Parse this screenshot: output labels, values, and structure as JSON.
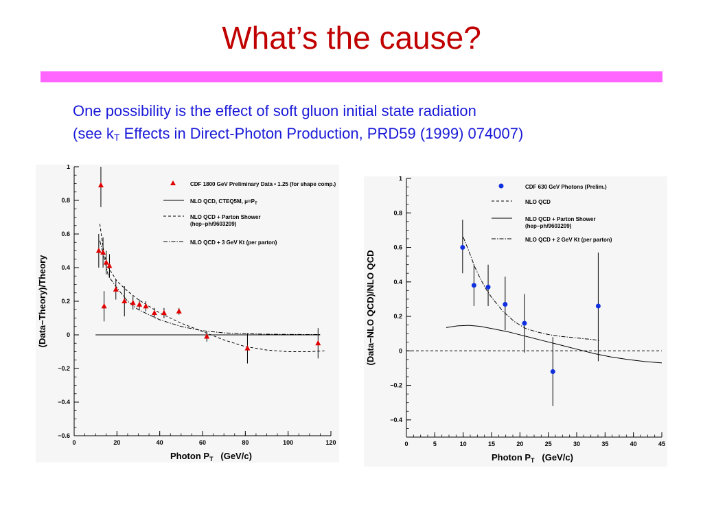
{
  "slide": {
    "title": "What’s the cause?",
    "subtitle_line1": "One possibility is the effect of soft gluon initial state radiation",
    "subtitle_line2_pre": "(see k",
    "subtitle_line2_sub": "T",
    "subtitle_line2_post": " Effects in Direct-Photon Production, PRD59 (1999) 074007)",
    "title_color": "#c00000",
    "rule_color": "#ff66ff",
    "subtitle_color": "#1a1ad8"
  },
  "chart_data": [
    {
      "type": "scatter",
      "xlabel_pre": "Photon P",
      "xlabel_sub": "T",
      "xlabel_post": "   (GeV/c)",
      "ylabel": "(Data−Theory)/Theory",
      "xlim": [
        0,
        120
      ],
      "ylim": [
        -0.6,
        1.0
      ],
      "xticks": [
        "0",
        "20",
        "40",
        "60",
        "80",
        "100",
        "120"
      ],
      "yticks": [
        "−0.6",
        "−0.4",
        "−0.2",
        "0",
        "0.2",
        "0.4",
        "0.6",
        "0.8",
        "1"
      ],
      "legend_position": "top-right",
      "marker_color": "#e00000",
      "legend": [
        {
          "label": "CDF 1800 GeV Preliminary Data • 1.25 (for shape comp.)",
          "style": "marker"
        },
        {
          "label": "NLO QCD, CTEQ5M, μ=P",
          "sub": "T",
          "style": "solid"
        },
        {
          "label": "NLO QCD + Parton Shower",
          "label2": "(hep−ph/9603209)",
          "style": "dashed"
        },
        {
          "label": "NLO QCD + 3 GeV Kt (per parton)",
          "style": "dashdot"
        }
      ],
      "points": [
        {
          "x": 12.5,
          "y": 0.89,
          "lo": 0.76,
          "hi": 1.0
        },
        {
          "x": 11.5,
          "y": 0.5,
          "lo": 0.4,
          "hi": 0.6
        },
        {
          "x": 13.5,
          "y": 0.49,
          "lo": 0.4,
          "hi": 0.58
        },
        {
          "x": 15.0,
          "y": 0.43,
          "lo": 0.36,
          "hi": 0.5
        },
        {
          "x": 16.5,
          "y": 0.41,
          "lo": 0.34,
          "hi": 0.48
        },
        {
          "x": 14.0,
          "y": 0.17,
          "lo": 0.08,
          "hi": 0.26
        },
        {
          "x": 19.5,
          "y": 0.27,
          "lo": 0.21,
          "hi": 0.33
        },
        {
          "x": 23.5,
          "y": 0.2,
          "lo": 0.11,
          "hi": 0.29
        },
        {
          "x": 27.5,
          "y": 0.19,
          "lo": 0.15,
          "hi": 0.23
        },
        {
          "x": 30.5,
          "y": 0.18,
          "lo": 0.15,
          "hi": 0.21
        },
        {
          "x": 33.5,
          "y": 0.17,
          "lo": 0.14,
          "hi": 0.2
        },
        {
          "x": 37.5,
          "y": 0.13,
          "lo": 0.1,
          "hi": 0.16
        },
        {
          "x": 42.0,
          "y": 0.13,
          "lo": 0.1,
          "hi": 0.16
        },
        {
          "x": 49.0,
          "y": 0.14,
          "lo": 0.12,
          "hi": 0.16
        },
        {
          "x": 62.0,
          "y": -0.01,
          "lo": -0.04,
          "hi": 0.02
        },
        {
          "x": 81.0,
          "y": -0.08,
          "lo": -0.17,
          "hi": 0.01
        },
        {
          "x": 114.0,
          "y": -0.05,
          "lo": -0.14,
          "hi": 0.04
        }
      ],
      "curves": [
        {
          "name": "NLO QCD, CTEQ5M",
          "style": "solid",
          "x": [
            10,
            115
          ],
          "y": [
            0.0,
            0.0
          ]
        },
        {
          "name": "NLO QCD + Parton Shower",
          "style": "dashed",
          "x": [
            12,
            14,
            16,
            20,
            25,
            30,
            40,
            50,
            60,
            70,
            80,
            90,
            100,
            110,
            117
          ],
          "y": [
            0.66,
            0.48,
            0.4,
            0.32,
            0.26,
            0.21,
            0.13,
            0.07,
            0.02,
            -0.03,
            -0.07,
            -0.09,
            -0.1,
            -0.1,
            -0.095
          ]
        },
        {
          "name": "NLO QCD + 3 GeV Kt",
          "style": "dashdot",
          "x": [
            12,
            14,
            16,
            20,
            25,
            30,
            40,
            50,
            60,
            70,
            80,
            90,
            100,
            110,
            115
          ],
          "y": [
            0.56,
            0.46,
            0.35,
            0.28,
            0.2,
            0.15,
            0.09,
            0.05,
            0.025,
            0.012,
            0.007,
            0.004,
            0.003,
            0.002,
            0.002
          ]
        }
      ]
    },
    {
      "type": "scatter",
      "xlabel_pre": "Photon P",
      "xlabel_sub": "T",
      "xlabel_post": "   (GeV/c)",
      "ylabel": "(Data−NLO QCD)/NLO QCD",
      "xlim": [
        0,
        45
      ],
      "ylim": [
        -0.5,
        1.0
      ],
      "xticks": [
        "0",
        "5",
        "10",
        "15",
        "20",
        "25",
        "30",
        "35",
        "40",
        "45"
      ],
      "yticks": [
        "−0.4",
        "−0.2",
        "0",
        "0.2",
        "0.4",
        "0.6",
        "0.8",
        "1"
      ],
      "legend_position": "top-right",
      "marker_color": "#1030e0",
      "legend": [
        {
          "label": "CDF 630 GeV Photons (Prelim.)",
          "style": "marker"
        },
        {
          "label": "NLO QCD",
          "style": "dashed"
        },
        {
          "label": "NLO QCD + Parton Shower",
          "label2": "(hep−ph/9603209)",
          "style": "solid"
        },
        {
          "label": "NLO QCD + 2 GeV Kt (per parton)",
          "style": "dashdot"
        }
      ],
      "points": [
        {
          "x": 9.9,
          "y": 0.6,
          "lo": 0.45,
          "hi": 0.76
        },
        {
          "x": 11.9,
          "y": 0.38,
          "lo": 0.26,
          "hi": 0.5
        },
        {
          "x": 14.4,
          "y": 0.37,
          "lo": 0.26,
          "hi": 0.5
        },
        {
          "x": 17.4,
          "y": 0.27,
          "lo": 0.12,
          "hi": 0.43
        },
        {
          "x": 20.8,
          "y": 0.16,
          "lo": -0.01,
          "hi": 0.33
        },
        {
          "x": 25.8,
          "y": -0.12,
          "lo": -0.32,
          "hi": 0.08
        },
        {
          "x": 33.8,
          "y": 0.26,
          "lo": -0.06,
          "hi": 0.57
        }
      ],
      "curves": [
        {
          "name": "NLO QCD",
          "style": "dashed",
          "x": [
            0,
            45
          ],
          "y": [
            0.0,
            0.0
          ]
        },
        {
          "name": "NLO QCD + Parton Shower",
          "style": "solid",
          "x": [
            7,
            9,
            11,
            13,
            15,
            18,
            21,
            24,
            27,
            30,
            33,
            36,
            39,
            42,
            45
          ],
          "y": [
            0.135,
            0.145,
            0.148,
            0.142,
            0.13,
            0.11,
            0.085,
            0.06,
            0.035,
            0.01,
            -0.015,
            -0.035,
            -0.05,
            -0.062,
            -0.07
          ]
        },
        {
          "name": "NLO QCD + 2 GeV Kt",
          "style": "dashdot",
          "x": [
            10,
            11,
            12,
            13,
            14,
            15,
            17,
            19,
            21,
            23,
            25,
            27,
            30,
            33,
            34
          ],
          "y": [
            0.66,
            0.58,
            0.49,
            0.42,
            0.36,
            0.31,
            0.23,
            0.17,
            0.13,
            0.11,
            0.095,
            0.085,
            0.075,
            0.065,
            0.06
          ]
        }
      ]
    }
  ]
}
